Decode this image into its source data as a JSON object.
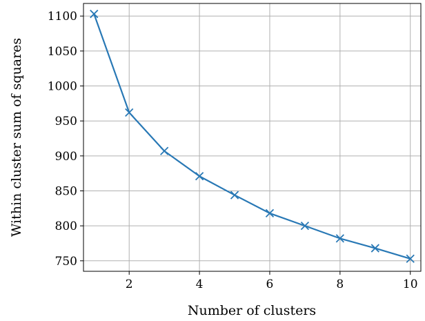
{
  "chart_data": {
    "type": "line",
    "title": "",
    "xlabel": "Number of clusters",
    "ylabel": "Within cluster sum of squares",
    "xlim": [
      0.7,
      10.3
    ],
    "ylim": [
      735,
      1118
    ],
    "x_ticks": [
      2,
      4,
      6,
      8,
      10
    ],
    "y_ticks": [
      750,
      800,
      850,
      900,
      950,
      1000,
      1050,
      1100
    ],
    "grid": true,
    "marker": "x",
    "line_color": "#2878b5",
    "series": [
      {
        "x": [
          1,
          2,
          3,
          4,
          5,
          6,
          7,
          8,
          9,
          10
        ],
        "values": [
          1103,
          962,
          907,
          871,
          844,
          818,
          800,
          782,
          768,
          753
        ]
      }
    ]
  }
}
